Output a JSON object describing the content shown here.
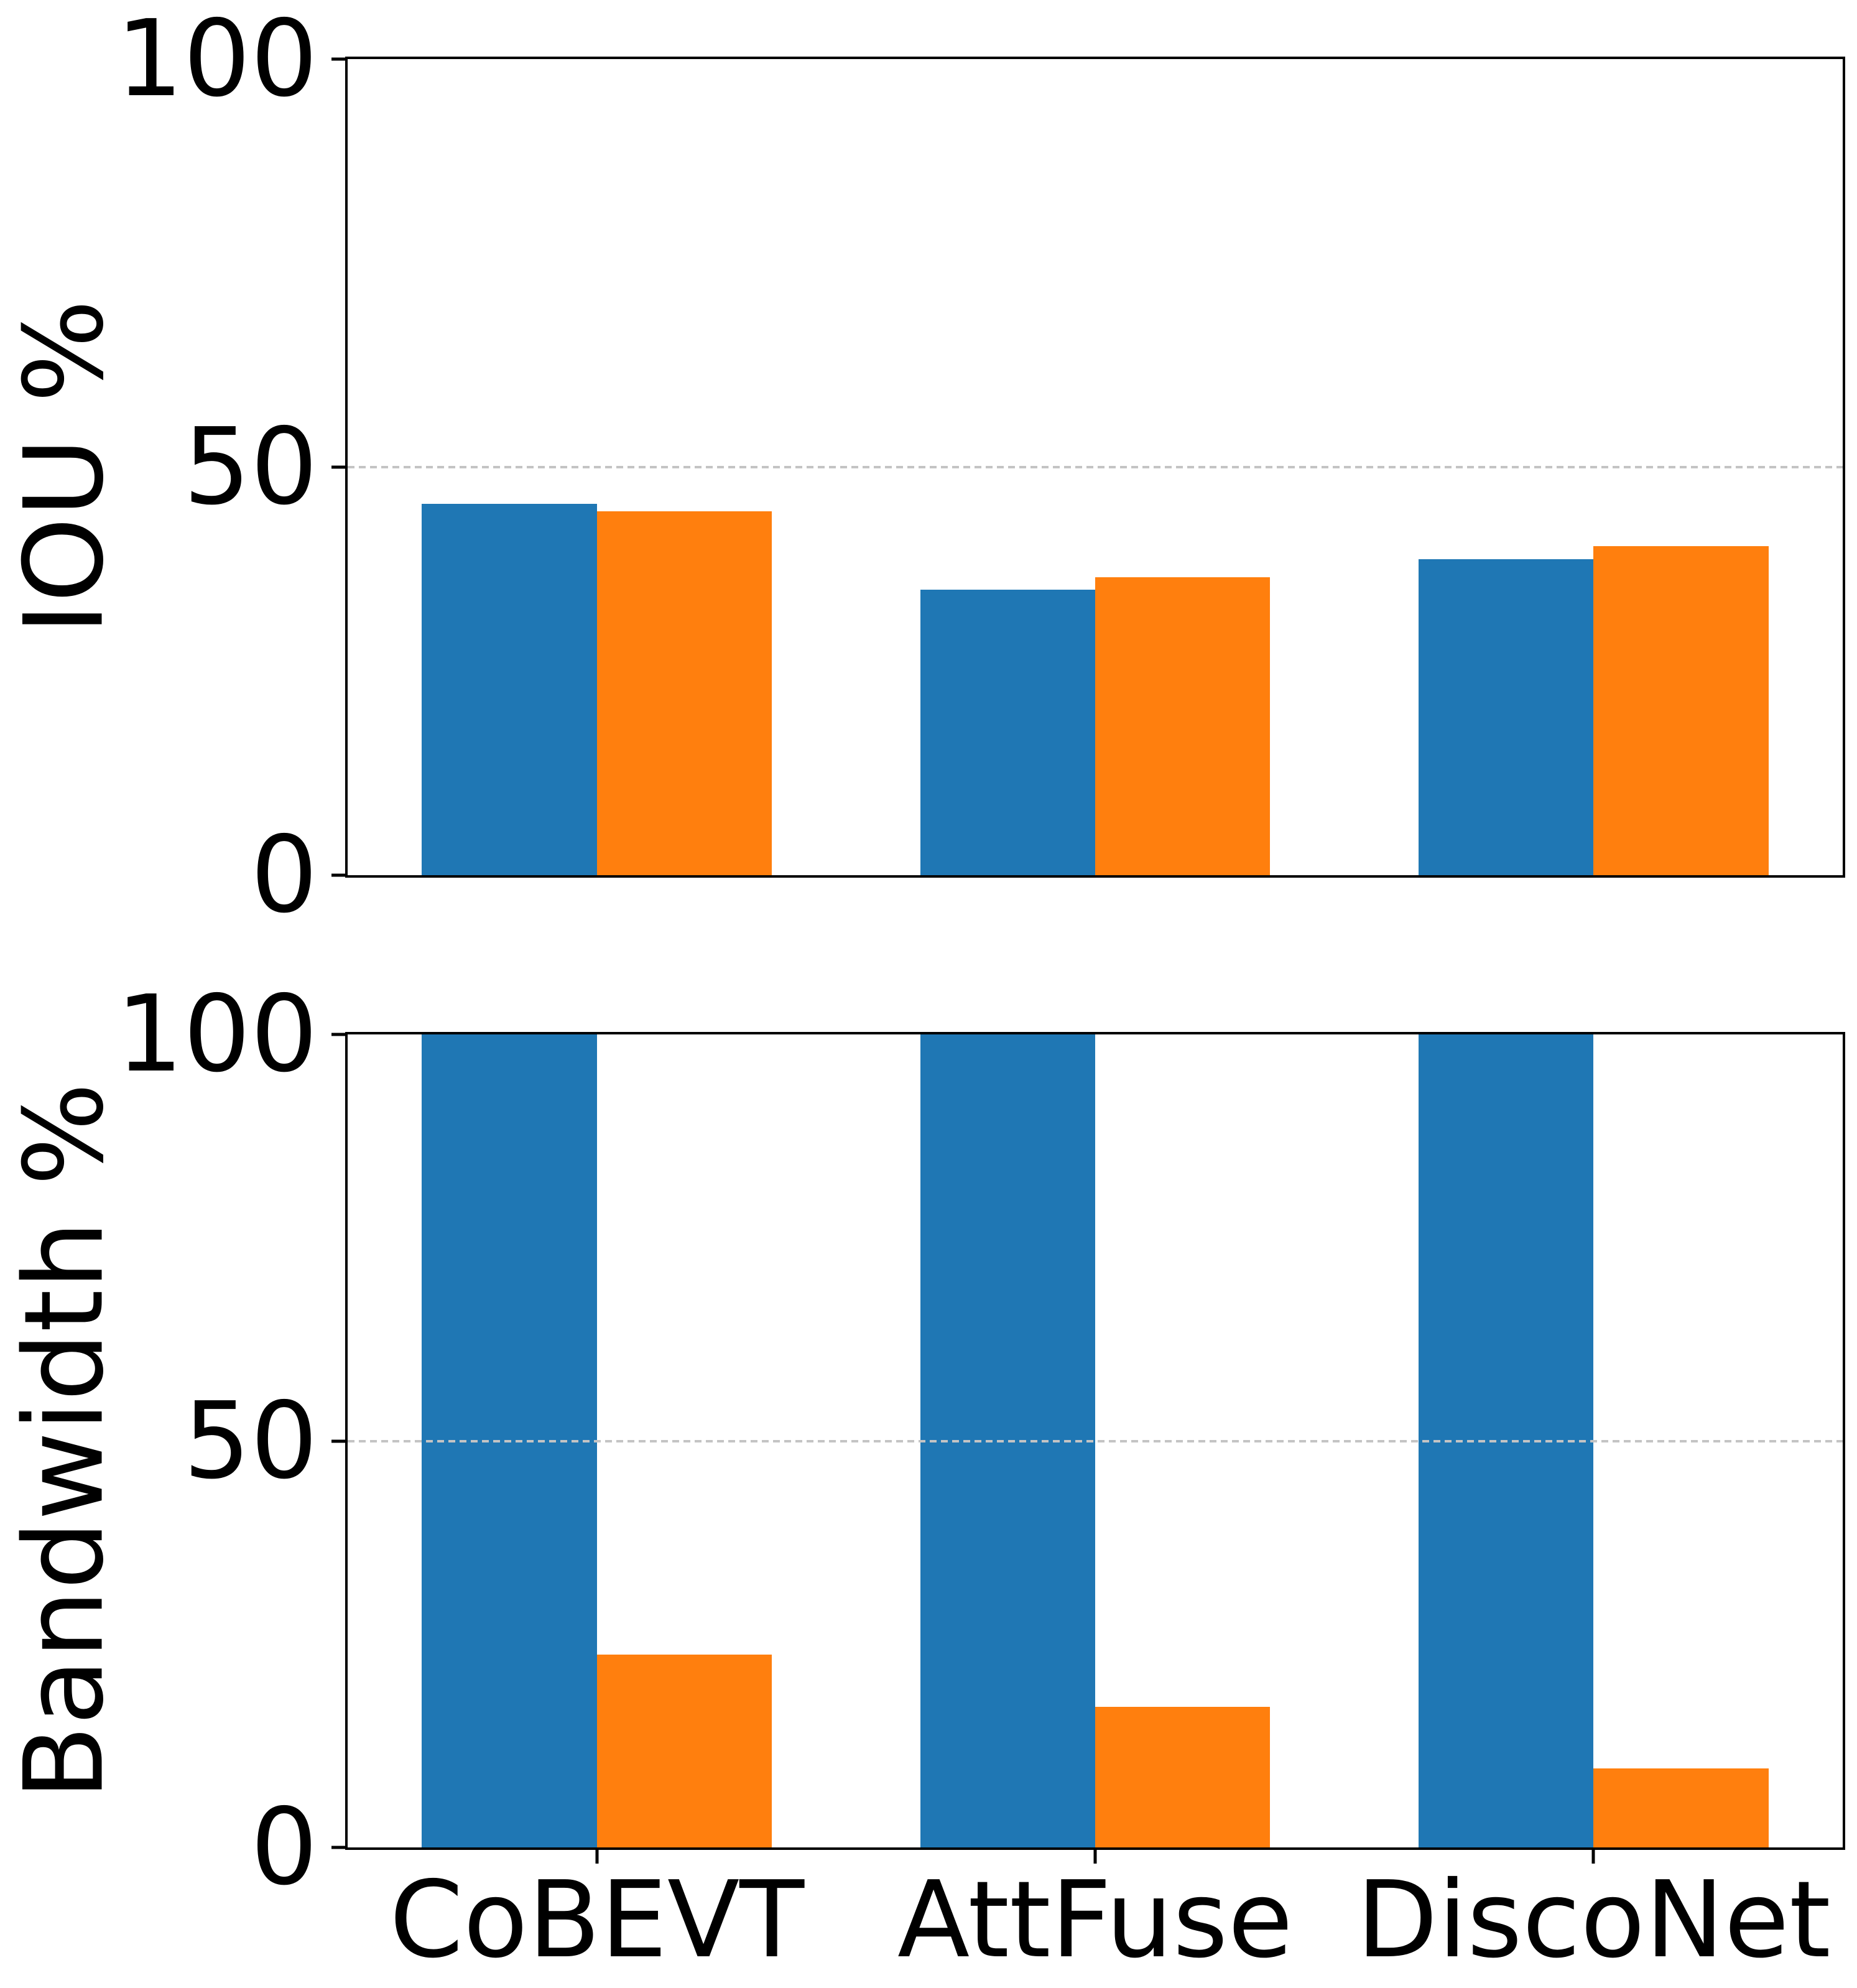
{
  "figure": {
    "background": "#ffffff",
    "bar_colors": {
      "blue": "#1f77b4",
      "orange": "#ff7f0e"
    },
    "grid_color": "#c4c4c4"
  },
  "chart_data": [
    {
      "type": "bar",
      "title": "",
      "ylabel": "IOU %",
      "xlabel": "",
      "categories": [
        "CoBEVT",
        "AttFuse",
        "DiscoNet"
      ],
      "series": [
        {
          "name": "blue-series",
          "color": "#1f77b4",
          "values": [
            45.5,
            35.0,
            38.7
          ]
        },
        {
          "name": "orange-series",
          "color": "#ff7f0e",
          "values": [
            44.6,
            36.5,
            40.3
          ]
        }
      ],
      "ylim": [
        0,
        100
      ],
      "yticks": [
        0,
        50,
        100
      ],
      "gridlines": [
        50
      ],
      "grid_style": "dashed",
      "legend": "none",
      "show_x_tick_labels": false,
      "show_x_tick_marks": false
    },
    {
      "type": "bar",
      "title": "",
      "ylabel": "Bandwidth %",
      "xlabel": "",
      "categories": [
        "CoBEVT",
        "AttFuse",
        "DiscoNet"
      ],
      "series": [
        {
          "name": "blue-series",
          "color": "#1f77b4",
          "values": [
            100,
            100,
            100
          ]
        },
        {
          "name": "orange-series",
          "color": "#ff7f0e",
          "values": [
            23.7,
            17.3,
            9.7
          ]
        }
      ],
      "ylim": [
        0,
        100
      ],
      "yticks": [
        0,
        50,
        100
      ],
      "gridlines": [
        50
      ],
      "grid_style": "dashed",
      "legend": "none",
      "show_x_tick_labels": true,
      "show_x_tick_marks": true
    }
  ]
}
